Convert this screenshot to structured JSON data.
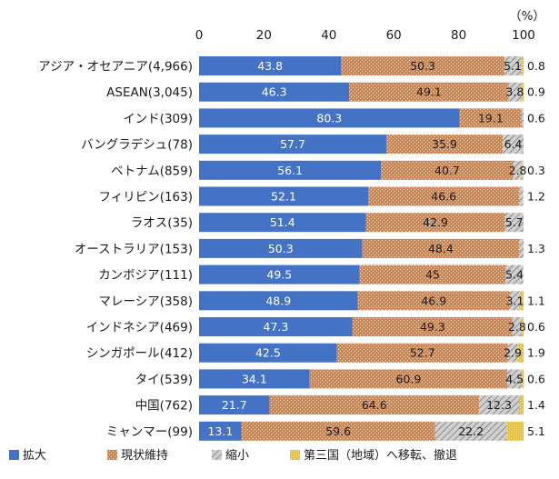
{
  "chart_data": {
    "type": "bar",
    "orientation": "horizontal",
    "stacked": true,
    "unit_label": "（%）",
    "xlim": [
      0,
      100
    ],
    "xticks": [
      0,
      20,
      40,
      60,
      80,
      100
    ],
    "categories": [
      "アジア・オセアニア(4,966)",
      "ASEAN(3,045)",
      "インド(309)",
      "バングラデシュ(78)",
      "ベトナム(859)",
      "フィリピン(163)",
      "ラオス(35)",
      "オーストラリア(153)",
      "カンボジア(111)",
      "マレーシア(358)",
      "インドネシア(469)",
      "シンガポール(412)",
      "タイ(539)",
      "中国(762)",
      "ミャンマー(99)"
    ],
    "series": [
      {
        "name": "拡大",
        "color": "#4472C4",
        "pattern": "solid",
        "values": [
          43.8,
          46.3,
          80.3,
          57.7,
          56.1,
          52.1,
          51.4,
          50.3,
          49.5,
          48.9,
          47.3,
          42.5,
          34.1,
          21.7,
          13.1
        ],
        "labels": [
          "43.8",
          "46.3",
          "80.3",
          "57.7",
          "56.1",
          "52.1",
          "51.4",
          "50.3",
          "49.5",
          "48.9",
          "47.3",
          "42.5",
          "34.1",
          "21.7",
          "13.1"
        ]
      },
      {
        "name": "現状維持",
        "color": "#ED7D31",
        "pattern": "dots",
        "values": [
          50.3,
          49.1,
          19.1,
          35.9,
          40.7,
          46.6,
          42.9,
          48.4,
          45,
          46.9,
          49.3,
          52.7,
          60.9,
          64.6,
          59.6
        ],
        "labels": [
          "50.3",
          "49.1",
          "19.1",
          "35.9",
          "40.7",
          "46.6",
          "42.9",
          "48.4",
          "45",
          "46.9",
          "49.3",
          "52.7",
          "60.9",
          "64.6",
          "59.6"
        ]
      },
      {
        "name": "縮小",
        "color": "#A5A5A5",
        "pattern": "hatch",
        "values": [
          5.1,
          3.8,
          0.6,
          6.4,
          2.8,
          1.2,
          5.7,
          1.3,
          5.4,
          3.1,
          2.8,
          2.9,
          4.5,
          12.3,
          22.2
        ],
        "labels": [
          "5.1",
          "3.8",
          "0.6",
          "6.4",
          "2.8",
          "1.2",
          "5.7",
          "1.3",
          "5.4",
          "3.1",
          "2.8",
          "2.9",
          "4.5",
          "12.3",
          "22.2"
        ]
      },
      {
        "name": "第三国（地域）へ移転、撤退",
        "color": "#FFC000",
        "pattern": "dots",
        "values": [
          0.8,
          0.9,
          0,
          0,
          0.3,
          0,
          0,
          0,
          0,
          1.1,
          0.6,
          1.9,
          0.6,
          1.4,
          5.1
        ],
        "labels": [
          "0.8",
          "0.9",
          "",
          "",
          "0.3",
          "",
          "",
          "",
          "",
          "1.1",
          "0.6",
          "1.9",
          "0.6",
          "1.4",
          "5.1"
        ]
      }
    ],
    "legend_position": "bottom",
    "grid": false
  }
}
